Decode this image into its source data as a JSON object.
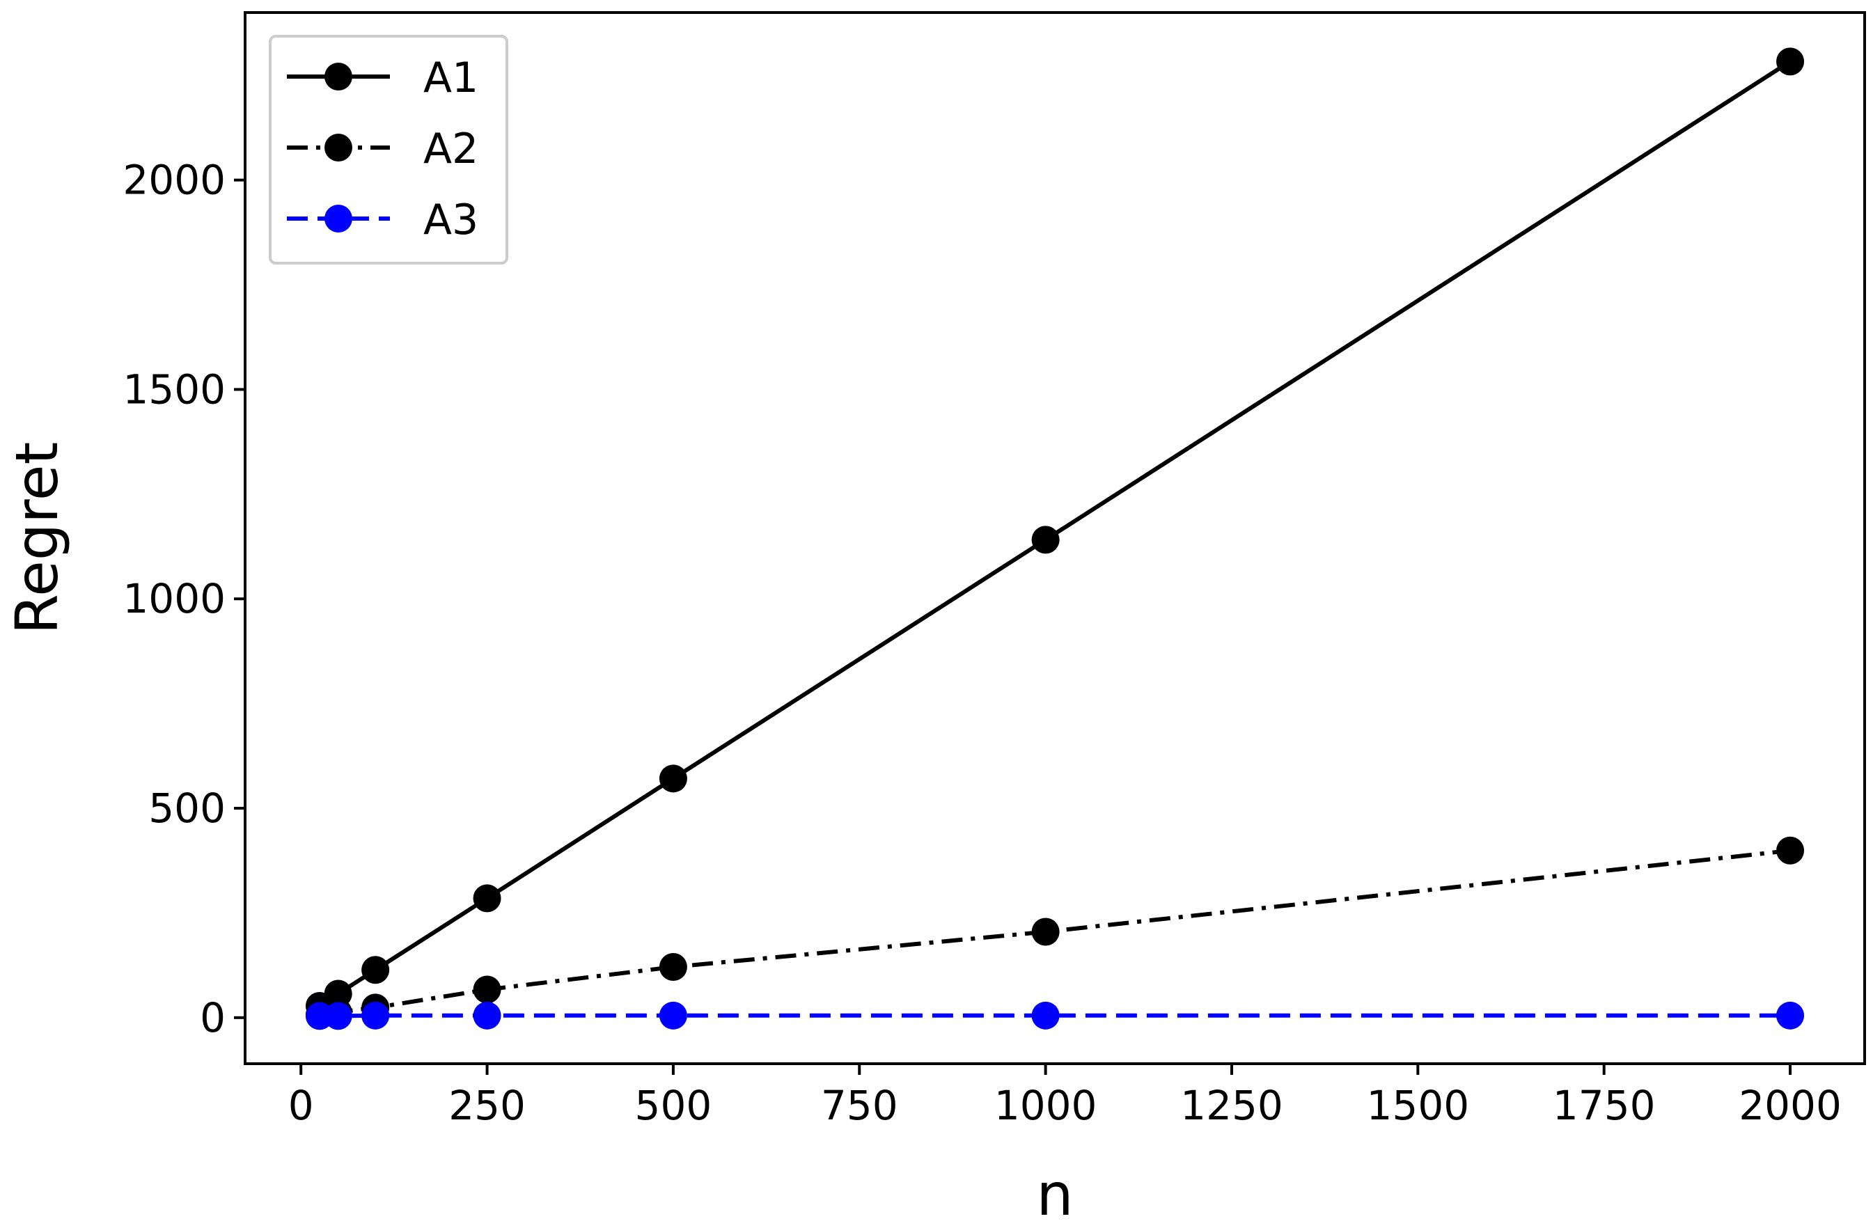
{
  "chart_data": {
    "type": "line",
    "xlabel": "n",
    "ylabel": "Regret",
    "xlim": [
      -75,
      2100
    ],
    "ylim": [
      -110,
      2400
    ],
    "xticks": [
      0,
      250,
      500,
      750,
      1000,
      1250,
      1500,
      1750,
      2000
    ],
    "yticks": [
      0,
      500,
      1000,
      1500,
      2000
    ],
    "grid": false,
    "legend_position": "top-left",
    "series": [
      {
        "name": "A1",
        "color": "#000000",
        "line_style": "solid",
        "marker": "circle",
        "x": [
          25,
          50,
          100,
          250,
          500,
          1000,
          2000
        ],
        "y": [
          28,
          57,
          114,
          285,
          571,
          1141,
          2283
        ]
      },
      {
        "name": "A2",
        "color": "#000000",
        "line_style": "dashdot",
        "marker": "circle",
        "x": [
          25,
          50,
          100,
          250,
          500,
          1000,
          2000
        ],
        "y": [
          7,
          13,
          24,
          67,
          121,
          205,
          399
        ]
      },
      {
        "name": "A3",
        "color": "#0000ff",
        "line_style": "dashed",
        "marker": "circle",
        "x": [
          25,
          50,
          100,
          250,
          500,
          1000,
          2000
        ],
        "y": [
          4,
          4,
          5,
          5,
          5,
          5,
          5
        ]
      }
    ]
  }
}
